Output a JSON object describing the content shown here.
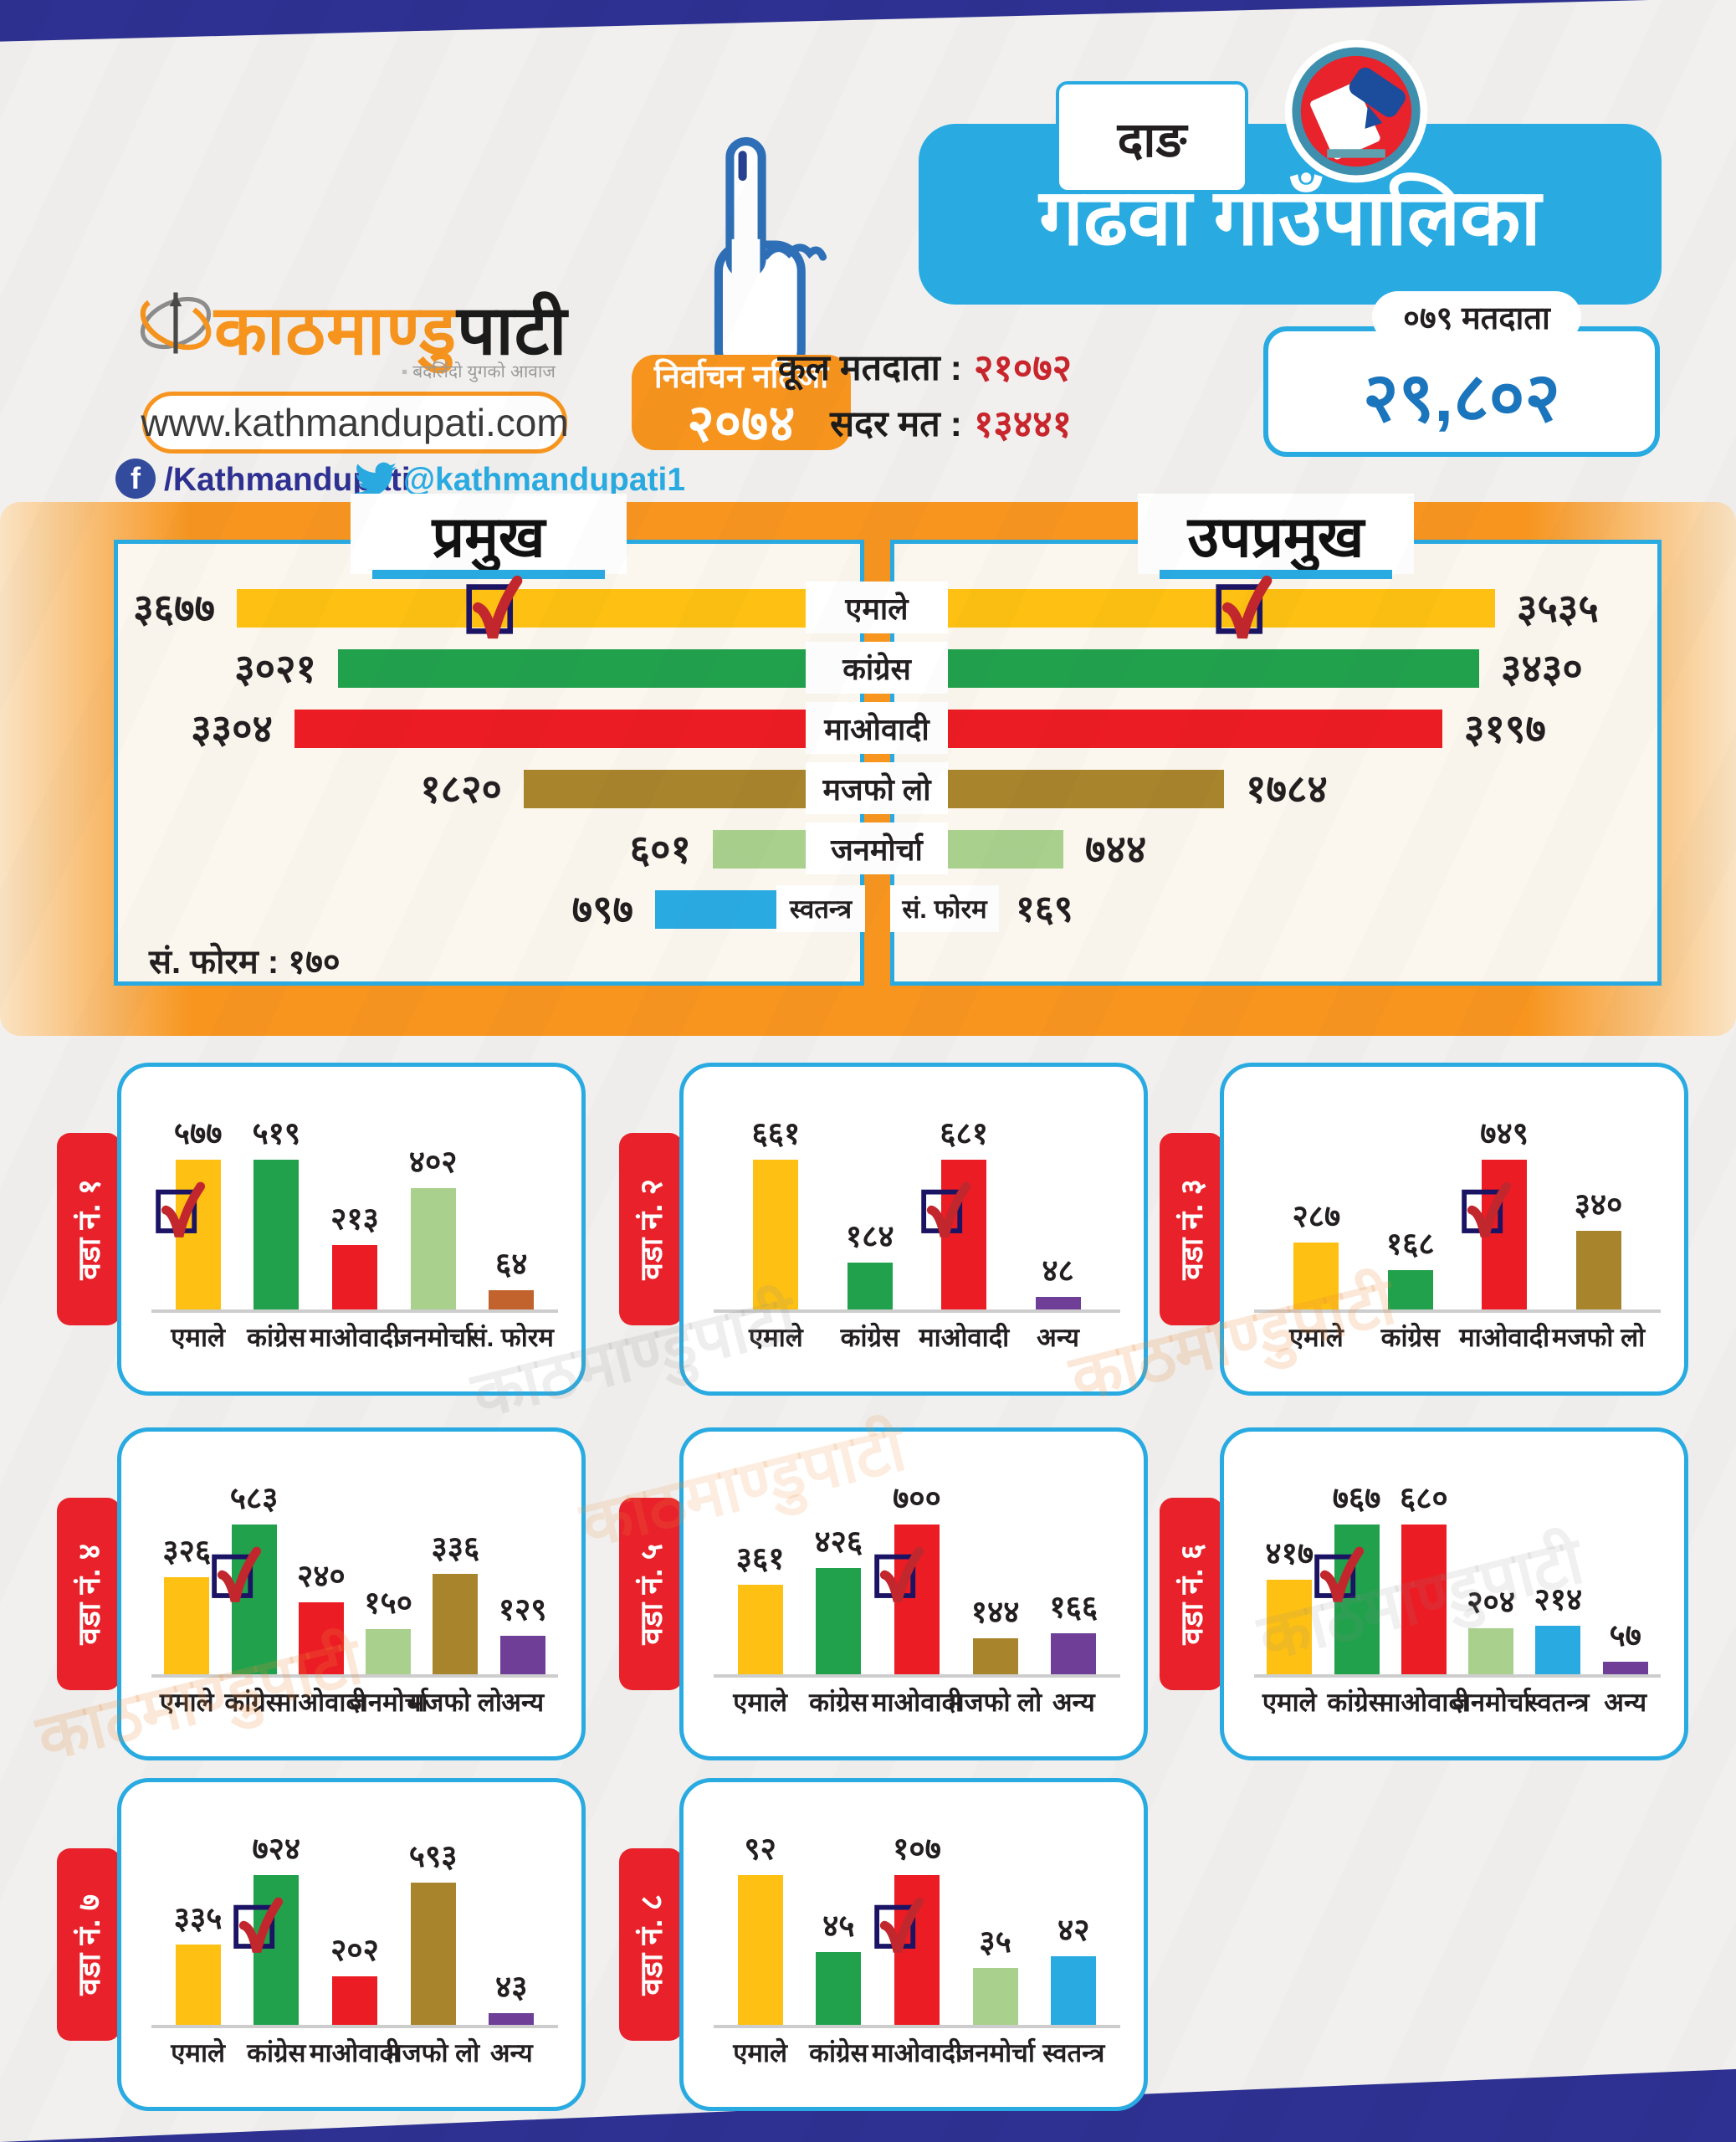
{
  "brand": {
    "logo_part1": "काठमाण्डु",
    "logo_part2": "पाटी",
    "tagline": "बदलिंदो युगको आवाज",
    "website": "www.kathmandupati.com",
    "facebook": "/Kathmandupati",
    "twitter": "@kathmandupati1"
  },
  "header": {
    "district": "दाङ",
    "municipality": "गढवा गाउँपालिका",
    "result_label": "निर्वाचन नतिजा",
    "result_year": "२०७४",
    "total_voters_label": "कूल मतदाता :",
    "total_voters_value": "२१०७२",
    "valid_votes_label": "सदर मत :",
    "valid_votes_value": "१३४४१",
    "voters_2079_label": "०७९ मतदाता",
    "voters_2079_value": "२९,८०२"
  },
  "theme": {
    "accent_cyan": "#29ABE2",
    "accent_orange": "#F7941E",
    "navy": "#2E3192",
    "ward_tab_red": "#E8212A",
    "value_red": "#C9252C",
    "value_blue": "#1B75BC",
    "panel_cream": "#FCF7EE"
  },
  "middle": {
    "left_title": "प्रमुख",
    "right_title": "उपप्रमुख",
    "left_footnote": "सं. फोरम : १७०",
    "rows": [
      {
        "party": "एमाले",
        "color": "#FDC013",
        "left_label": "३६७७",
        "left_votes": 3677,
        "left_check": true,
        "right_label": "३५३५",
        "right_votes": 3535,
        "right_check": true
      },
      {
        "party": "कांग्रेस",
        "color": "#22A14D",
        "left_label": "३०२१",
        "left_votes": 3021,
        "right_label": "३४३०",
        "right_votes": 3430
      },
      {
        "party": "माओवादी",
        "color": "#EC1C24",
        "left_label": "३३०४",
        "left_votes": 3304,
        "right_label": "३१९७",
        "right_votes": 3197
      },
      {
        "party": "मजफो लो",
        "color": "#A8842C",
        "left_label": "१८२०",
        "left_votes": 1820,
        "right_label": "१७८४",
        "right_votes": 1784
      },
      {
        "party": "जनमोर्चा",
        "color": "#A9D08D",
        "left_label": "६०१",
        "left_votes": 601,
        "right_label": "७४४",
        "right_votes": 744
      }
    ],
    "independent_row": {
      "party": "स्वतन्त्र",
      "color": "#29ABE2",
      "left_label": "७९७",
      "left_votes": 797,
      "right_party": "सं. फोरम",
      "right_value": "१६९"
    }
  },
  "wards": [
    {
      "name": "वडा नं. १",
      "bars": [
        {
          "party": "एमाले",
          "value": "५७७",
          "votes": 577,
          "color": "#FDC013",
          "check": true
        },
        {
          "party": "कांग्रेस",
          "value": "५१९",
          "votes": 519,
          "color": "#22A14D"
        },
        {
          "party": "माओवादी",
          "value": "२१३",
          "votes": 213,
          "color": "#EC1C24"
        },
        {
          "party": "जनमोर्चा",
          "value": "४०२",
          "votes": 402,
          "color": "#A9D08D"
        },
        {
          "party": "सं. फोरम",
          "value": "६४",
          "votes": 64,
          "color": "#C2622C"
        }
      ]
    },
    {
      "name": "वडा नं. २",
      "bars": [
        {
          "party": "एमाले",
          "value": "६६१",
          "votes": 661,
          "color": "#FDC013"
        },
        {
          "party": "कांग्रेस",
          "value": "१८४",
          "votes": 184,
          "color": "#22A14D"
        },
        {
          "party": "माओवादी",
          "value": "६८१",
          "votes": 681,
          "color": "#EC1C24",
          "check": true
        },
        {
          "party": "अन्य",
          "value": "४८",
          "votes": 48,
          "color": "#6F3F98"
        }
      ]
    },
    {
      "name": "वडा नं. ३",
      "bars": [
        {
          "party": "एमाले",
          "value": "२८७",
          "votes": 287,
          "color": "#FDC013"
        },
        {
          "party": "कांग्रेस",
          "value": "१६८",
          "votes": 168,
          "color": "#22A14D"
        },
        {
          "party": "माओवादी",
          "value": "७४९",
          "votes": 749,
          "color": "#EC1C24",
          "check": true
        },
        {
          "party": "मजफो लो",
          "value": "३४०",
          "votes": 340,
          "color": "#A8842C"
        }
      ]
    },
    {
      "name": "वडा नं. ४",
      "bars": [
        {
          "party": "एमाले",
          "value": "३२६",
          "votes": 326,
          "color": "#FDC013"
        },
        {
          "party": "कांग्रेस",
          "value": "५८३",
          "votes": 583,
          "color": "#22A14D",
          "check": true
        },
        {
          "party": "माओवादी",
          "value": "२४०",
          "votes": 240,
          "color": "#EC1C24"
        },
        {
          "party": "जनमोर्चा",
          "value": "१५०",
          "votes": 150,
          "color": "#A9D08D"
        },
        {
          "party": "मजफो लो",
          "value": "३३६",
          "votes": 336,
          "color": "#A8842C"
        },
        {
          "party": "अन्य",
          "value": "१२९",
          "votes": 129,
          "color": "#6F3F98"
        }
      ]
    },
    {
      "name": "वडा नं. ५",
      "bars": [
        {
          "party": "एमाले",
          "value": "३६१",
          "votes": 361,
          "color": "#FDC013"
        },
        {
          "party": "कांग्रेस",
          "value": "४२६",
          "votes": 426,
          "color": "#22A14D"
        },
        {
          "party": "माओवादी",
          "value": "७००",
          "votes": 700,
          "color": "#EC1C24",
          "check": true
        },
        {
          "party": "मजफो लो",
          "value": "१४४",
          "votes": 144,
          "color": "#A8842C"
        },
        {
          "party": "अन्य",
          "value": "१६६",
          "votes": 166,
          "color": "#6F3F98"
        }
      ]
    },
    {
      "name": "वडा नं. ६",
      "bars": [
        {
          "party": "एमाले",
          "value": "४१७",
          "votes": 417,
          "color": "#FDC013"
        },
        {
          "party": "कांग्रेस",
          "value": "७६७",
          "votes": 767,
          "color": "#22A14D",
          "check": true
        },
        {
          "party": "माओवादी",
          "value": "६८०",
          "votes": 680,
          "color": "#EC1C24"
        },
        {
          "party": "जनमोर्चा",
          "value": "२०४",
          "votes": 204,
          "color": "#A9D08D"
        },
        {
          "party": "स्वतन्त्र",
          "value": "२१४",
          "votes": 214,
          "color": "#29ABE2"
        },
        {
          "party": "अन्य",
          "value": "५७",
          "votes": 57,
          "color": "#6F3F98"
        }
      ]
    },
    {
      "name": "वडा नं. ७",
      "bars": [
        {
          "party": "एमाले",
          "value": "३३५",
          "votes": 335,
          "color": "#FDC013"
        },
        {
          "party": "कांग्रेस",
          "value": "७२४",
          "votes": 724,
          "color": "#22A14D",
          "check": true
        },
        {
          "party": "माओवादी",
          "value": "२०२",
          "votes": 202,
          "color": "#EC1C24"
        },
        {
          "party": "मजफो लो",
          "value": "५९३",
          "votes": 593,
          "color": "#A8842C"
        },
        {
          "party": "अन्य",
          "value": "४३",
          "votes": 43,
          "color": "#6F3F98"
        }
      ]
    },
    {
      "name": "वडा नं. ८",
      "bars": [
        {
          "party": "एमाले",
          "value": "९२",
          "votes": 92,
          "color": "#FDC013"
        },
        {
          "party": "कांग्रेस",
          "value": "४५",
          "votes": 45,
          "color": "#22A14D"
        },
        {
          "party": "माओवादी",
          "value": "१०७",
          "votes": 107,
          "color": "#EC1C24",
          "check": true
        },
        {
          "party": "जनमोर्चा",
          "value": "३५",
          "votes": 35,
          "color": "#A9D08D"
        },
        {
          "party": "स्वतन्त्र",
          "value": "४२",
          "votes": 42,
          "color": "#29ABE2"
        }
      ]
    }
  ],
  "watermark": "काठमाण्डुपाटी",
  "chart_data": [
    {
      "type": "bar",
      "orientation": "horizontal",
      "title": "प्रमुख",
      "categories": [
        "एमाले",
        "कांग्रेस",
        "माओवादी",
        "मजफो लो",
        "जनमोर्चा",
        "स्वतन्त्र",
        "सं. फोरम"
      ],
      "values": [
        3677,
        3021,
        3304,
        1820,
        601,
        797,
        170
      ],
      "winner": "एमाले",
      "legend_position": "center",
      "grid": false
    },
    {
      "type": "bar",
      "orientation": "horizontal",
      "title": "उपप्रमुख",
      "categories": [
        "एमाले",
        "कांग्रेस",
        "माओवादी",
        "मजफो लो",
        "जनमोर्चा",
        "सं. फोरम"
      ],
      "values": [
        3535,
        3430,
        3197,
        1784,
        744,
        169
      ],
      "winner": "एमाले",
      "legend_position": "center",
      "grid": false
    },
    {
      "type": "bar",
      "title": "वडा नं. १",
      "categories": [
        "एमाले",
        "कांग्रेस",
        "माओवादी",
        "जनमोर्चा",
        "सं. फोरम"
      ],
      "values": [
        577,
        519,
        213,
        402,
        64
      ],
      "winner": "एमाले",
      "grid": false
    },
    {
      "type": "bar",
      "title": "वडा नं. २",
      "categories": [
        "एमाले",
        "कांग्रेस",
        "माओवादी",
        "अन्य"
      ],
      "values": [
        661,
        184,
        681,
        48
      ],
      "winner": "माओवादी",
      "grid": false
    },
    {
      "type": "bar",
      "title": "वडा नं. ३",
      "categories": [
        "एमाले",
        "कांग्रेस",
        "माओवादी",
        "मजफो लो"
      ],
      "values": [
        287,
        168,
        749,
        340
      ],
      "winner": "माओवादी",
      "grid": false
    },
    {
      "type": "bar",
      "title": "वडा नं. ४",
      "categories": [
        "एमाले",
        "कांग्रेस",
        "माओवादी",
        "जनमोर्चा",
        "मजफो लो",
        "अन्य"
      ],
      "values": [
        326,
        583,
        240,
        150,
        336,
        129
      ],
      "winner": "कांग्रेस",
      "grid": false
    },
    {
      "type": "bar",
      "title": "वडा नं. ५",
      "categories": [
        "एमाले",
        "कांग्रेस",
        "माओवादी",
        "मजफो लो",
        "अन्य"
      ],
      "values": [
        361,
        426,
        700,
        144,
        166
      ],
      "winner": "माओवादी",
      "grid": false
    },
    {
      "type": "bar",
      "title": "वडा नं. ६",
      "categories": [
        "एमाले",
        "कांग्रेस",
        "माओवादी",
        "जनमोर्चा",
        "स्वतन्त्र",
        "अन्य"
      ],
      "values": [
        417,
        767,
        680,
        204,
        214,
        57
      ],
      "winner": "कांग्रेस",
      "grid": false
    },
    {
      "type": "bar",
      "title": "वडा नं. ७",
      "categories": [
        "एमाले",
        "कांग्रेस",
        "माओवादी",
        "मजफो लो",
        "अन्य"
      ],
      "values": [
        335,
        724,
        202,
        593,
        43
      ],
      "winner": "कांग्रेस",
      "grid": false
    },
    {
      "type": "bar",
      "title": "वडा नं. ८",
      "categories": [
        "एमाले",
        "कांग्रेस",
        "माओवादी",
        "जनमोर्चा",
        "स्वतन्त्र"
      ],
      "values": [
        92,
        45,
        107,
        35,
        42
      ],
      "winner": "माओवादी",
      "grid": false
    }
  ]
}
